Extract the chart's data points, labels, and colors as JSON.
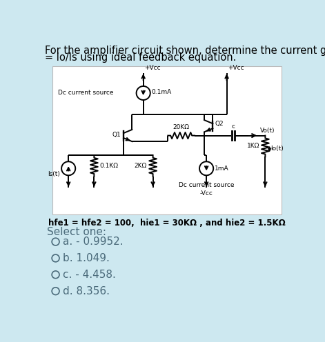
{
  "bg_color": "#cde8f0",
  "white_box_color": "#ffffff",
  "title_line1": "For the amplifier circuit shown, determine the current gain Ai",
  "title_line2": "= Io/Is using ideal feedback equation.",
  "title_fontsize": 10.5,
  "circuit_param": "hfe1 = hfe2 = 100,  hie1 = 30KΩ , and hie2 = 1.5KΩ",
  "select_one": "Select one:",
  "options": [
    "a. - 0.9952.",
    "b. 1.049.",
    "c. - 4.458.",
    "d. 8.356."
  ],
  "option_fontsize": 11,
  "select_fontsize": 11,
  "text_color": "#4a6a7a"
}
